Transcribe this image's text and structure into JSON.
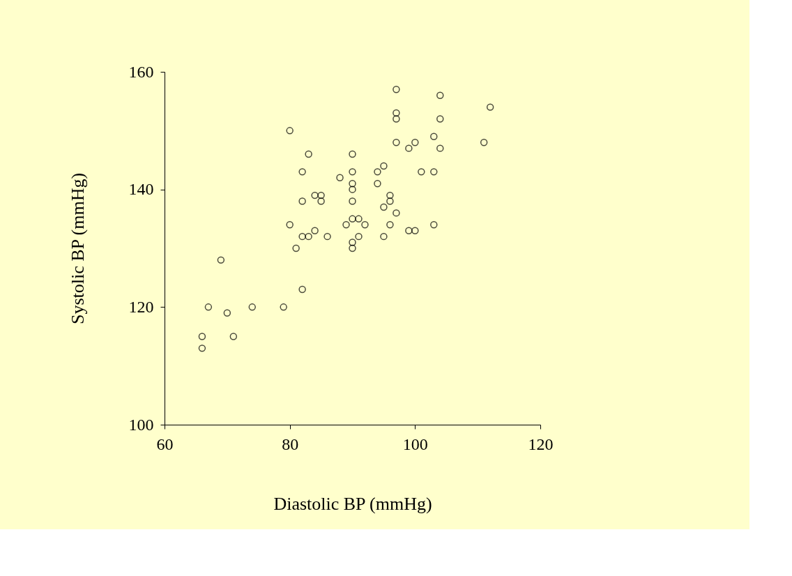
{
  "chart_data": {
    "type": "scatter",
    "xlabel": "Diastolic BP (mmHg)",
    "ylabel": "Systolic BP (mmHg)",
    "xlim": [
      60,
      120
    ],
    "xticks": [
      60,
      80,
      100,
      120
    ],
    "ylim": [
      100,
      160
    ],
    "yticks": [
      100,
      120,
      140,
      160
    ],
    "grid": false,
    "legend": false,
    "marker": "circle",
    "series": [
      {
        "color": "#000000",
        "x": [
          97,
          104,
          97,
          97,
          104,
          112,
          80,
          103,
          97,
          100,
          99,
          104,
          111,
          83,
          90,
          82,
          90,
          94,
          95,
          101,
          103,
          88,
          94,
          90,
          90,
          84,
          85,
          96,
          82,
          85,
          90,
          96,
          95,
          97,
          90,
          91,
          80,
          89,
          92,
          96,
          103,
          84,
          99,
          100,
          82,
          83,
          86,
          91,
          95,
          90,
          81,
          90,
          69,
          82,
          67,
          74,
          79,
          70,
          66,
          71,
          66
        ],
        "values": [
          157,
          156,
          153,
          152,
          152,
          154,
          150,
          149,
          148,
          148,
          147,
          147,
          148,
          146,
          146,
          143,
          143,
          143,
          144,
          143,
          143,
          142,
          141,
          141,
          140,
          139,
          139,
          139,
          138,
          138,
          138,
          138,
          137,
          136,
          135,
          135,
          134,
          134,
          134,
          134,
          134,
          133,
          133,
          133,
          132,
          132,
          132,
          132,
          132,
          131,
          130,
          130,
          128,
          123,
          120,
          120,
          120,
          119,
          115,
          115,
          113
        ]
      }
    ]
  }
}
